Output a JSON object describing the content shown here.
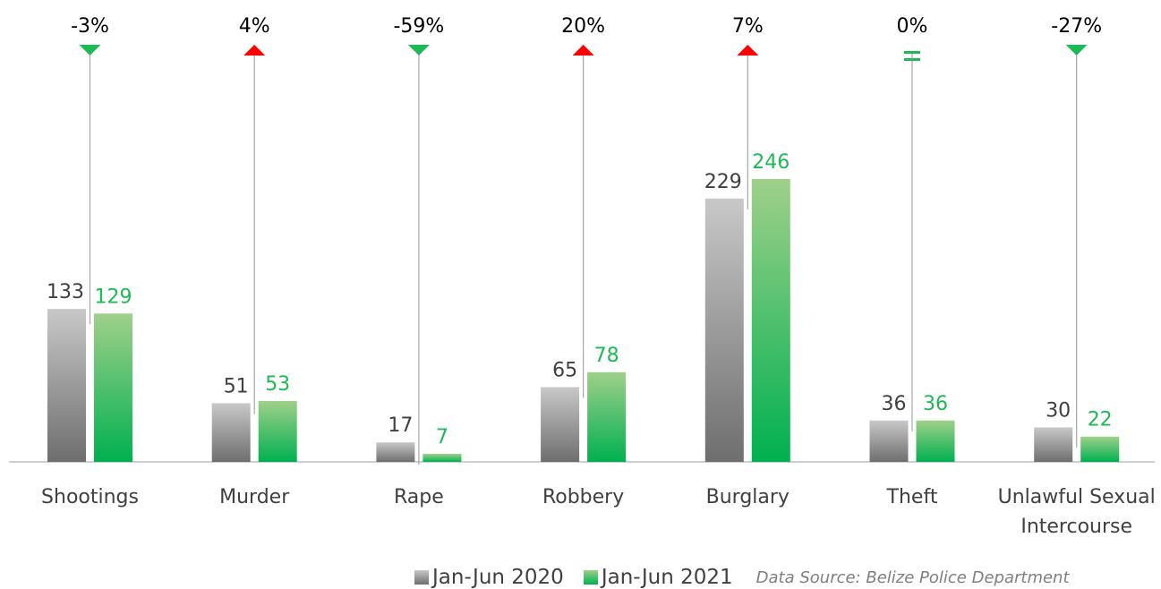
{
  "chart_data": {
    "type": "bar",
    "categories": [
      "Shootings",
      "Murder",
      "Rape",
      "Robbery",
      "Burglary",
      "Theft",
      "Unlawful Sexual Intercourse"
    ],
    "category_lines": [
      [
        "Shootings"
      ],
      [
        "Murder"
      ],
      [
        "Rape"
      ],
      [
        "Robbery"
      ],
      [
        "Burglary"
      ],
      [
        "Theft"
      ],
      [
        "Unlawful Sexual",
        "Intercourse"
      ]
    ],
    "series": [
      {
        "name": "Jan-Jun 2020",
        "values": [
          133,
          51,
          17,
          65,
          229,
          36,
          30
        ],
        "color": "#808080"
      },
      {
        "name": "Jan-Jun 2021",
        "values": [
          129,
          53,
          7,
          78,
          246,
          36,
          22
        ],
        "color": "#1db954"
      }
    ],
    "pct_change": [
      "-3%",
      "4%",
      "-59%",
      "20%",
      "7%",
      "0%",
      "-27%"
    ],
    "change_direction": [
      "down",
      "up",
      "down",
      "up",
      "up",
      "equal",
      "down"
    ],
    "change_colors": {
      "up": "#ff0000",
      "down": "#1db954",
      "equal": "#1db954"
    },
    "ylim": [
      0,
      260
    ],
    "grid": false,
    "legend_position": "bottom-right"
  },
  "legend": {
    "items": [
      {
        "label": "Jan-Jun 2020"
      },
      {
        "label": "Jan-Jun 2021"
      }
    ],
    "source": "Data Source: Belize Police Department"
  }
}
